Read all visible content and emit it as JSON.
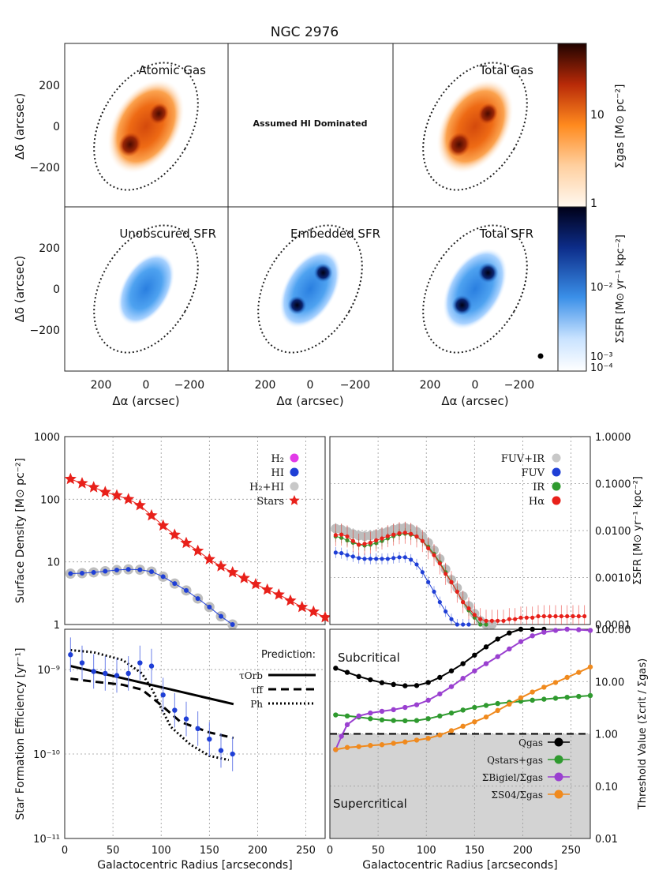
{
  "figure_title": "NGC 2976",
  "maps": {
    "panel_labels": [
      "Atomic Gas",
      "",
      "Total Gas",
      "Unobscured SFR",
      "Embedded SFR",
      "Total SFR"
    ],
    "molecular_note": "Assumed HI Dominated",
    "ylabel": "Δδ (arcsec)",
    "xlabel": "Δα (arcsec)",
    "y_ticks": [
      "200",
      "0",
      "−200"
    ],
    "x_ticks": [
      "200",
      "0",
      "−200"
    ],
    "gas_colorbar": {
      "label": "Σgas [M⊙ pc⁻²]",
      "ticks": [
        "10",
        "1"
      ]
    },
    "sfr_colorbar": {
      "label": "ΣSFR [M⊙ yr⁻¹ kpc⁻²]",
      "ticks": [
        "10⁻²",
        "10⁻³",
        "10⁻⁴"
      ]
    },
    "colors": {
      "gas_low": "#fff1e2",
      "gas_mid": "#ff8a1e",
      "gas_high": "#2a0500",
      "sfr_low": "#eef6ff",
      "sfr_mid": "#3a8fe8",
      "sfr_high": "#000020"
    }
  },
  "chart_data": [
    {
      "id": "surface-density",
      "type": "scatter",
      "ylabel": "Surface Density [M⊙ pc⁻²]",
      "xlim": [
        0,
        270
      ],
      "ylim": [
        1,
        1000
      ],
      "yscale": "log",
      "y_tick_labels": [
        "1000",
        "100",
        "10",
        "1"
      ],
      "legend": [
        "H₂",
        "HI",
        "H₂+HI",
        "Stars"
      ],
      "series": [
        {
          "name": "Stars",
          "color": "#e8201a",
          "x": [
            6,
            18,
            30,
            42,
            54,
            66,
            78,
            90,
            102,
            114,
            126,
            138,
            150,
            162,
            174,
            186,
            198,
            210,
            222,
            234,
            246,
            258,
            270
          ],
          "y": [
            210,
            180,
            155,
            130,
            115,
            100,
            80,
            55,
            38,
            27,
            20,
            15,
            11,
            8.5,
            6.8,
            5.5,
            4.4,
            3.6,
            3.0,
            2.4,
            1.9,
            1.6,
            1.3
          ]
        },
        {
          "name": "H₂+HI",
          "color": "#bdbdbd",
          "x": [
            6,
            18,
            30,
            42,
            54,
            66,
            78,
            90,
            102,
            114,
            126,
            138,
            150,
            162,
            174
          ],
          "y": [
            6.5,
            6.6,
            6.8,
            7.1,
            7.4,
            7.6,
            7.5,
            7.0,
            5.8,
            4.5,
            3.5,
            2.6,
            1.9,
            1.35,
            1.0
          ]
        },
        {
          "name": "HI",
          "color": "#1f3fd6",
          "x": [
            6,
            18,
            30,
            42,
            54,
            66,
            78,
            90,
            102,
            114,
            126,
            138,
            150,
            162,
            174
          ],
          "y": [
            6.5,
            6.6,
            6.8,
            7.1,
            7.4,
            7.6,
            7.5,
            7.0,
            5.8,
            4.5,
            3.5,
            2.6,
            1.9,
            1.35,
            1.0
          ]
        }
      ]
    },
    {
      "id": "sfr-density",
      "type": "scatter",
      "ylabel": "ΣSFR [M⊙ yr⁻¹ kpc⁻²]",
      "xlim": [
        0,
        270
      ],
      "ylim": [
        0.0001,
        1.0
      ],
      "yscale": "log",
      "y_tick_labels": [
        "1.0000",
        "0.1000",
        "0.0100",
        "0.0010",
        "0.0001"
      ],
      "legend": [
        "FUV+IR",
        "FUV",
        "IR",
        "Hα"
      ],
      "series": [
        {
          "name": "FUV+IR",
          "color": "#bdbdbd",
          "x": [
            6,
            12,
            18,
            24,
            30,
            36,
            42,
            48,
            54,
            60,
            66,
            72,
            78,
            84,
            90,
            96,
            102,
            108,
            114,
            120,
            126,
            132,
            138,
            144,
            150,
            156,
            162,
            168
          ],
          "y": [
            0.011,
            0.0105,
            0.0095,
            0.0085,
            0.0078,
            0.0076,
            0.0078,
            0.0082,
            0.0088,
            0.0095,
            0.0105,
            0.0112,
            0.0115,
            0.0108,
            0.0095,
            0.0075,
            0.0055,
            0.0038,
            0.0025,
            0.0015,
            0.0009,
            0.0006,
            0.0004,
            0.00025,
            0.00017,
            0.00012,
            0.0001,
            0.0001
          ]
        },
        {
          "name": "IR",
          "color": "#2f9a2f",
          "x": [
            6,
            12,
            18,
            24,
            30,
            36,
            42,
            48,
            54,
            60,
            66,
            72,
            78,
            84,
            90,
            96,
            102,
            108,
            114,
            120,
            126,
            132,
            138,
            144,
            150,
            156,
            162
          ],
          "y": [
            0.0075,
            0.007,
            0.0062,
            0.0055,
            0.005,
            0.0048,
            0.005,
            0.0054,
            0.006,
            0.0068,
            0.0076,
            0.0083,
            0.0086,
            0.0082,
            0.0074,
            0.006,
            0.0045,
            0.0032,
            0.0021,
            0.0013,
            0.0008,
            0.0005,
            0.0003,
            0.0002,
            0.00014,
            0.0001,
            0.0001
          ]
        },
        {
          "name": "FUV",
          "color": "#1f3fd6",
          "x": [
            6,
            12,
            18,
            24,
            30,
            36,
            42,
            48,
            54,
            60,
            66,
            72,
            78,
            84,
            90,
            96,
            102,
            108,
            114,
            120,
            126,
            132,
            138,
            144
          ],
          "y": [
            0.0034,
            0.0033,
            0.003,
            0.0028,
            0.0026,
            0.0025,
            0.0025,
            0.0025,
            0.0025,
            0.0025,
            0.0026,
            0.0027,
            0.0027,
            0.0024,
            0.0019,
            0.0013,
            0.0008,
            0.0005,
            0.0003,
            0.00019,
            0.00013,
            0.0001,
            0.0001,
            0.0001
          ]
        },
        {
          "name": "Hα",
          "color": "#e8201a",
          "x": [
            6,
            12,
            18,
            24,
            30,
            36,
            42,
            48,
            54,
            60,
            66,
            72,
            78,
            84,
            90,
            96,
            102,
            108,
            114,
            120,
            126,
            132,
            138,
            144,
            150,
            156,
            162,
            168,
            174,
            180,
            186,
            192,
            198,
            204,
            210,
            216,
            222,
            228,
            234,
            240,
            246,
            252,
            258,
            264
          ],
          "y": [
            0.008,
            0.0082,
            0.0075,
            0.006,
            0.005,
            0.0052,
            0.0055,
            0.0062,
            0.0068,
            0.0076,
            0.0082,
            0.0088,
            0.009,
            0.0085,
            0.0075,
            0.006,
            0.0042,
            0.003,
            0.002,
            0.0012,
            0.0008,
            0.0005,
            0.0003,
            0.00022,
            0.00016,
            0.00013,
            0.00012,
            0.00012,
            0.00012,
            0.00012,
            0.00013,
            0.00013,
            0.00014,
            0.00014,
            0.00014,
            0.00015,
            0.00015,
            0.00015,
            0.00015,
            0.00015,
            0.00015,
            0.00015,
            0.00015,
            0.00015
          ]
        }
      ]
    },
    {
      "id": "sfe",
      "type": "line",
      "ylabel": "Star Formation Efficiency [yr⁻¹]",
      "xlabel": "Galactocentric Radius [arcseconds]",
      "xlim": [
        0,
        270
      ],
      "ylim": [
        1e-11,
        3e-09
      ],
      "yscale": "log",
      "x_tick_labels": [
        "0",
        "50",
        "100",
        "150",
        "200",
        "250"
      ],
      "y_tick_labels": [
        "10⁻⁹",
        "10⁻¹⁰",
        "10⁻¹¹"
      ],
      "legend_title": "Prediction:",
      "legend": [
        "τOrb",
        "τff",
        "Ph"
      ],
      "observed": {
        "name": "Observed",
        "color": "#1f3fd6",
        "x": [
          6,
          18,
          30,
          42,
          54,
          66,
          78,
          90,
          102,
          114,
          126,
          138,
          150,
          162,
          174
        ],
        "y": [
          1.5e-09,
          1.2e-09,
          9.5e-10,
          9e-10,
          8.5e-10,
          9e-10,
          1.2e-09,
          1.1e-09,
          5e-10,
          3.3e-10,
          2.6e-10,
          2e-10,
          1.5e-10,
          1.1e-10,
          1e-10
        ]
      },
      "series": [
        {
          "name": "τOrb",
          "style": "solid",
          "x": [
            6,
            175
          ],
          "y": [
            1.1e-09,
            3.9e-10
          ]
        },
        {
          "name": "τff",
          "style": "dashed",
          "x": [
            6,
            30,
            60,
            80,
            100,
            120,
            150,
            175
          ],
          "y": [
            7.8e-10,
            7.2e-10,
            6.6e-10,
            5.8e-10,
            3.8e-10,
            2.4e-10,
            1.8e-10,
            1.55e-10
          ]
        },
        {
          "name": "Ph",
          "style": "dotted",
          "x": [
            6,
            30,
            60,
            80,
            90,
            100,
            110,
            130,
            150,
            170
          ],
          "y": [
            1.7e-09,
            1.6e-09,
            1.3e-09,
            9e-10,
            6e-10,
            3.5e-10,
            2.1e-10,
            1.3e-10,
            9.5e-11,
            8.5e-11
          ]
        }
      ]
    },
    {
      "id": "thresholds",
      "type": "line",
      "ylabel": "Threshold Value (Σcrit / Σgas)",
      "xlabel": "Galactocentric Radius [arcseconds]",
      "xlim": [
        0,
        270
      ],
      "ylim": [
        0.01,
        100
      ],
      "yscale": "log",
      "x_tick_labels": [
        "0",
        "50",
        "100",
        "150",
        "200",
        "250"
      ],
      "y_tick_labels": [
        "100.00",
        "10.00",
        "1.00",
        "0.10",
        "0.01"
      ],
      "annotations": [
        "Subcritical",
        "Supercritical"
      ],
      "threshold": 1.0,
      "legend": [
        "Qgas",
        "Qstars+gas",
        "ΣBigiel/Σgas",
        "ΣS04/Σgas"
      ],
      "series": [
        {
          "name": "Qgas",
          "color": "#000000",
          "x": [
            6,
            18,
            30,
            42,
            54,
            66,
            78,
            90,
            102,
            114,
            126,
            138,
            150,
            162,
            174,
            186,
            198,
            210,
            222
          ],
          "y": [
            18,
            15,
            12.5,
            10.8,
            9.5,
            8.8,
            8.3,
            8.4,
            9.6,
            12,
            16,
            22,
            32,
            46,
            65,
            85,
            100,
            118,
            130
          ]
        },
        {
          "name": "Qstars+gas",
          "color": "#2f9a2f",
          "x": [
            6,
            18,
            30,
            42,
            54,
            66,
            78,
            90,
            102,
            114,
            126,
            138,
            150,
            162,
            174,
            186,
            198,
            210,
            222,
            234,
            246,
            258,
            270
          ],
          "y": [
            2.3,
            2.2,
            2.1,
            1.95,
            1.85,
            1.8,
            1.78,
            1.8,
            1.95,
            2.2,
            2.5,
            2.85,
            3.2,
            3.5,
            3.8,
            4.0,
            4.2,
            4.4,
            4.6,
            4.8,
            5.0,
            5.2,
            5.4
          ]
        },
        {
          "name": "ΣBigiel/Σgas",
          "color": "#9a40d0",
          "x": [
            6,
            12,
            18,
            30,
            42,
            54,
            66,
            78,
            90,
            102,
            114,
            126,
            138,
            150,
            162,
            174,
            186,
            198,
            210,
            222,
            234,
            246,
            258,
            270
          ],
          "y": [
            0.5,
            0.9,
            1.5,
            2.2,
            2.5,
            2.7,
            2.9,
            3.2,
            3.6,
            4.4,
            5.8,
            8,
            11.5,
            16,
            22,
            30,
            42,
            58,
            75,
            88,
            95,
            100,
            98,
            95
          ]
        },
        {
          "name": "ΣS04/Σgas",
          "color": "#f08a1e",
          "x": [
            6,
            18,
            30,
            42,
            54,
            66,
            78,
            90,
            102,
            114,
            126,
            138,
            150,
            162,
            174,
            186,
            198,
            210,
            222,
            234,
            246,
            258,
            270
          ],
          "y": [
            0.5,
            0.55,
            0.57,
            0.6,
            0.62,
            0.66,
            0.7,
            0.76,
            0.82,
            0.95,
            1.15,
            1.4,
            1.7,
            2.1,
            2.8,
            3.7,
            4.9,
            6.3,
            7.8,
            9.6,
            12,
            15,
            19
          ]
        }
      ]
    }
  ]
}
